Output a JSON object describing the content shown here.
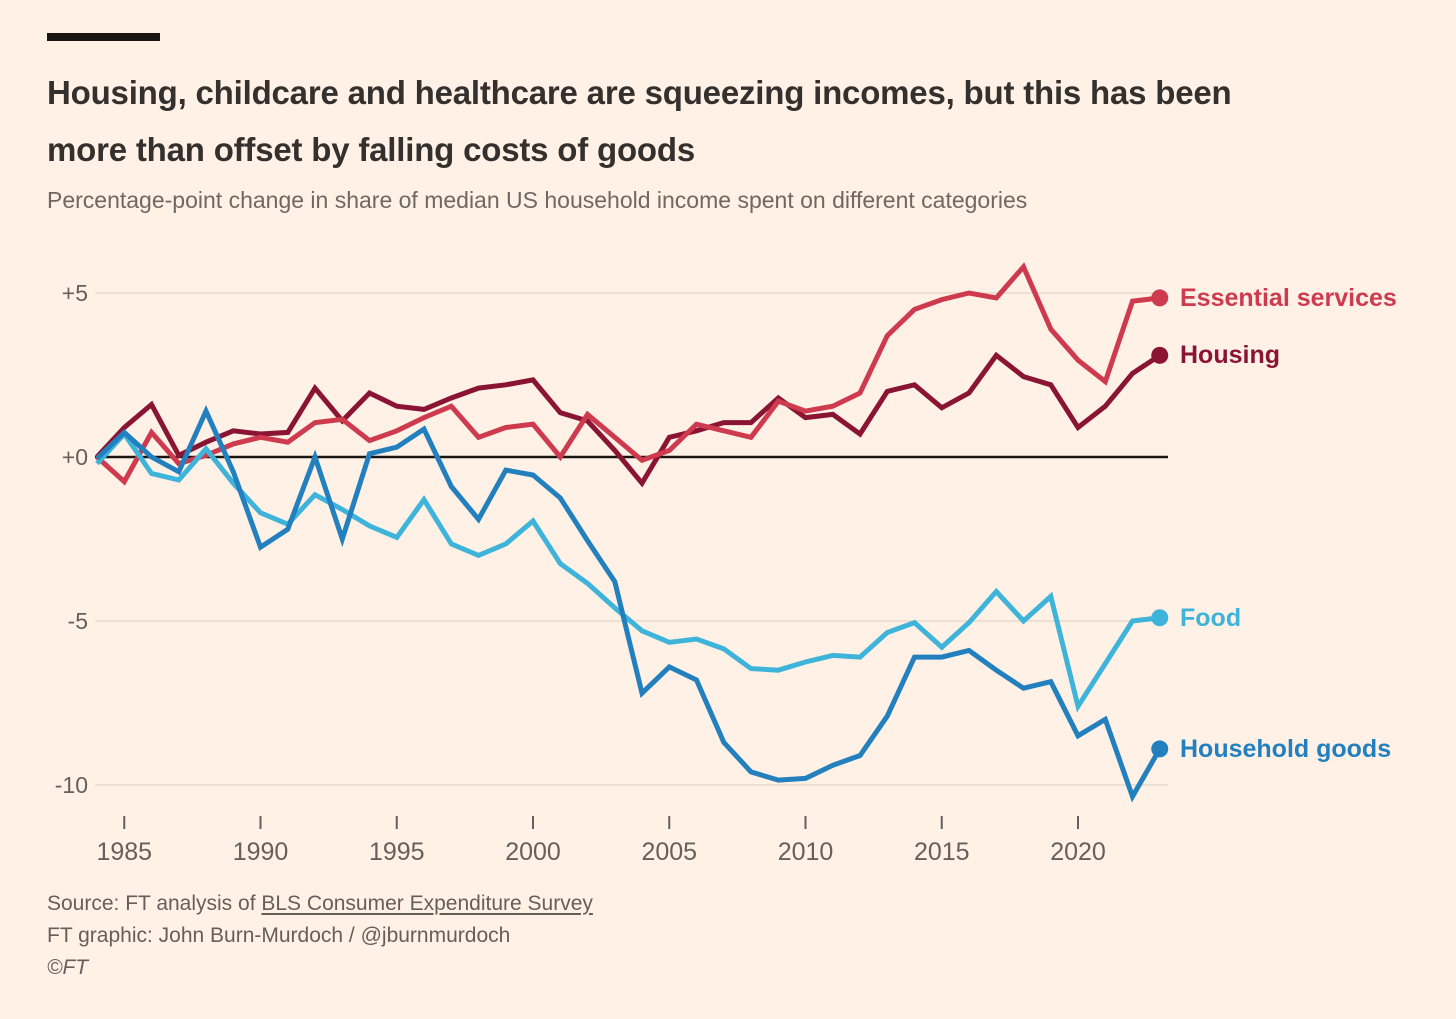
{
  "header": {
    "title_line1": "Housing, childcare and healthcare are squeezing incomes, but this has been",
    "title_line2": "more than offset by falling costs of goods",
    "subtitle": "Percentage-point change in share of median US household income spent on different categories"
  },
  "chart_data": {
    "type": "line",
    "title": "Percentage-point change in share of median US household income spent on different categories",
    "x": [
      1984,
      1985,
      1986,
      1987,
      1988,
      1989,
      1990,
      1991,
      1992,
      1993,
      1994,
      1995,
      1996,
      1997,
      1998,
      1999,
      2000,
      2001,
      2002,
      2003,
      2004,
      2005,
      2006,
      2007,
      2008,
      2009,
      2010,
      2011,
      2012,
      2013,
      2014,
      2015,
      2016,
      2017,
      2018,
      2019,
      2020,
      2021,
      2022,
      2023
    ],
    "x_ticks": [
      1985,
      1990,
      1995,
      2000,
      2005,
      2010,
      2015,
      2020
    ],
    "y_ticks": [
      {
        "label": "+5",
        "value": 5
      },
      {
        "label": "+0",
        "value": 0
      },
      {
        "label": "-5",
        "value": -5
      },
      {
        "label": "-10",
        "value": -10
      }
    ],
    "ylim": [
      -10.6,
      6.0
    ],
    "grid": "horizontal",
    "legend_position": "right-of-line-ends",
    "colors": {
      "background": "#fff1e5",
      "gridline": "#e7d9cb",
      "zero_line": "#1a1614",
      "axis_text": "#66605b"
    },
    "series": [
      {
        "name": "Housing",
        "color": "#8a1434",
        "values": [
          0,
          0.9,
          1.6,
          0.05,
          0.45,
          0.8,
          0.7,
          0.75,
          2.1,
          1.1,
          1.95,
          1.55,
          1.45,
          1.8,
          2.1,
          2.2,
          2.35,
          1.35,
          1.1,
          0.2,
          -0.8,
          0.6,
          0.8,
          1.05,
          1.05,
          1.8,
          1.2,
          1.3,
          0.7,
          2.0,
          2.2,
          1.5,
          1.95,
          3.1,
          2.45,
          2.2,
          0.9,
          1.55,
          2.55,
          3.1
        ]
      },
      {
        "name": "Essential services",
        "color": "#ce3a4e",
        "values": [
          0,
          -0.75,
          0.75,
          -0.2,
          0.05,
          0.4,
          0.6,
          0.45,
          1.05,
          1.15,
          0.5,
          0.8,
          1.2,
          1.55,
          0.6,
          0.9,
          1.0,
          0.0,
          1.3,
          0.6,
          -0.1,
          0.2,
          1.0,
          0.8,
          0.6,
          1.7,
          1.4,
          1.55,
          1.95,
          3.7,
          4.5,
          4.8,
          5.0,
          4.85,
          5.8,
          3.9,
          2.95,
          2.3,
          4.75,
          4.85
        ]
      },
      {
        "name": "Food",
        "color": "#3fb4da",
        "values": [
          -0.2,
          0.7,
          -0.5,
          -0.7,
          0.25,
          -0.8,
          -1.7,
          -2.05,
          -1.15,
          -1.6,
          -2.1,
          -2.45,
          -1.3,
          -2.65,
          -3.0,
          -2.65,
          -1.95,
          -3.25,
          -3.85,
          -4.6,
          -5.3,
          -5.65,
          -5.55,
          -5.85,
          -6.45,
          -6.5,
          -6.25,
          -6.05,
          -6.1,
          -5.35,
          -5.05,
          -5.8,
          -5.05,
          -4.1,
          -5.0,
          -4.25,
          -7.6,
          -6.3,
          -5.0,
          -4.9
        ]
      },
      {
        "name": "Household goods",
        "color": "#2280bf",
        "values": [
          -0.05,
          0.75,
          0.0,
          -0.45,
          1.4,
          -0.45,
          -2.75,
          -2.2,
          0.0,
          -2.5,
          0.1,
          0.3,
          0.85,
          -0.9,
          -1.9,
          -0.4,
          -0.55,
          -1.25,
          -2.55,
          -3.8,
          -7.2,
          -6.4,
          -6.8,
          -8.7,
          -9.6,
          -9.85,
          -9.8,
          -9.4,
          -9.1,
          -7.9,
          -6.1,
          -6.1,
          -5.9,
          -6.5,
          -7.05,
          -6.85,
          -8.5,
          -8.0,
          -10.35,
          -8.9
        ]
      }
    ]
  },
  "footer": {
    "source_prefix": "Source: FT analysis of ",
    "source_link": "BLS Consumer Expenditure Survey",
    "credit": "FT graphic: John Burn-Murdoch / @jburnmurdoch",
    "copyright": "©FT"
  }
}
